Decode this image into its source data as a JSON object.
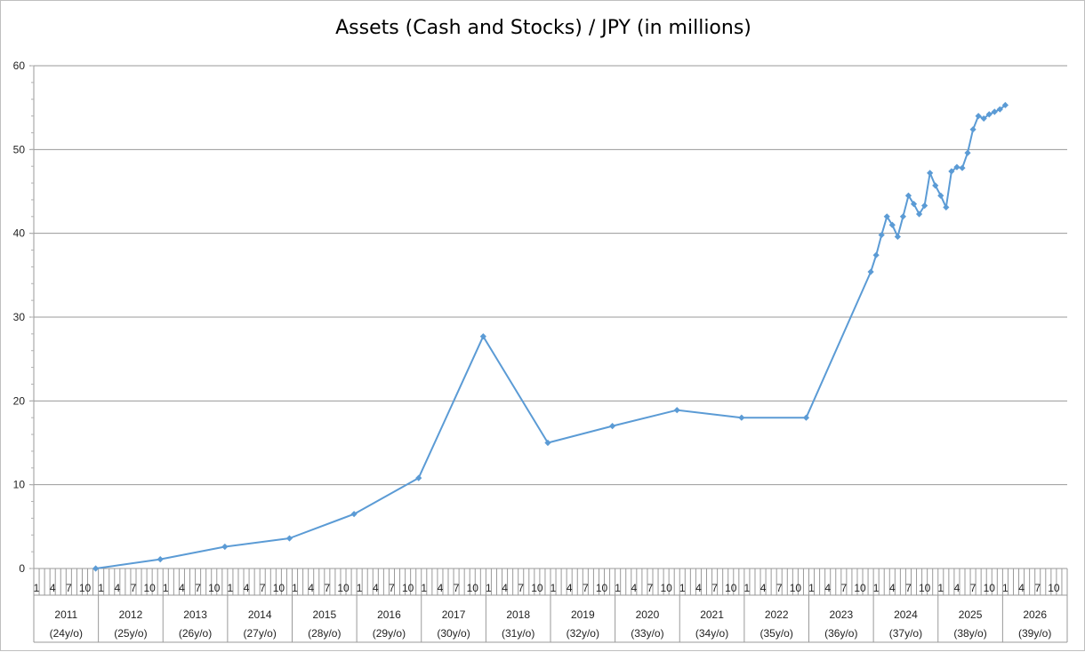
{
  "chart_data": {
    "type": "line",
    "title": "Assets (Cash and Stocks) / JPY (in millions)",
    "xlabel": "",
    "ylabel": "",
    "ylim": [
      0,
      60
    ],
    "yticks": [
      "0",
      "10",
      "20",
      "30",
      "40",
      "50",
      "60"
    ],
    "grid": true,
    "legend": "none",
    "color": "#5b9bd5",
    "x_range": [
      "2011-01",
      "2026-12"
    ],
    "month_ticks": [
      "1",
      "4",
      "7",
      "10"
    ],
    "years": [
      {
        "year": "2011",
        "age": "(24y/o)"
      },
      {
        "year": "2012",
        "age": "(25y/o)"
      },
      {
        "year": "2013",
        "age": "(26y/o)"
      },
      {
        "year": "2014",
        "age": "(27y/o)"
      },
      {
        "year": "2015",
        "age": "(28y/o)"
      },
      {
        "year": "2016",
        "age": "(29y/o)"
      },
      {
        "year": "2017",
        "age": "(30y/o)"
      },
      {
        "year": "2018",
        "age": "(31y/o)"
      },
      {
        "year": "2019",
        "age": "(32y/o)"
      },
      {
        "year": "2020",
        "age": "(33y/o)"
      },
      {
        "year": "2021",
        "age": "(34y/o)"
      },
      {
        "year": "2022",
        "age": "(35y/o)"
      },
      {
        "year": "2023",
        "age": "(36y/o)"
      },
      {
        "year": "2024",
        "age": "(37y/o)"
      },
      {
        "year": "2025",
        "age": "(38y/o)"
      },
      {
        "year": "2026",
        "age": "(39y/o)"
      }
    ],
    "series": [
      {
        "points": [
          {
            "x": "2011-12",
            "y": 0
          },
          {
            "x": "2012-12",
            "y": 1.1
          },
          {
            "x": "2013-12",
            "y": 2.6
          },
          {
            "x": "2014-12",
            "y": 3.6
          },
          {
            "x": "2015-12",
            "y": 6.5
          },
          {
            "x": "2016-12",
            "y": 10.8
          },
          {
            "x": "2017-12",
            "y": 27.7
          },
          {
            "x": "2018-12",
            "y": 15.0
          },
          {
            "x": "2019-12",
            "y": 17.0
          },
          {
            "x": "2020-12",
            "y": 18.9
          },
          {
            "x": "2021-12",
            "y": 18.0
          },
          {
            "x": "2022-12",
            "y": 18.0
          },
          {
            "x": "2023-12",
            "y": 35.4
          },
          {
            "x": "2024-01",
            "y": 37.4
          },
          {
            "x": "2024-02",
            "y": 39.8
          },
          {
            "x": "2024-03",
            "y": 42.0
          },
          {
            "x": "2024-04",
            "y": 41.0
          },
          {
            "x": "2024-05",
            "y": 39.6
          },
          {
            "x": "2024-06",
            "y": 42.0
          },
          {
            "x": "2024-07",
            "y": 44.5
          },
          {
            "x": "2024-08",
            "y": 43.5
          },
          {
            "x": "2024-09",
            "y": 42.3
          },
          {
            "x": "2024-10",
            "y": 43.3
          },
          {
            "x": "2024-11",
            "y": 47.2
          },
          {
            "x": "2024-12",
            "y": 45.7
          },
          {
            "x": "2025-01",
            "y": 44.5
          },
          {
            "x": "2025-02",
            "y": 43.1
          },
          {
            "x": "2025-03",
            "y": 47.4
          },
          {
            "x": "2025-04",
            "y": 47.9
          },
          {
            "x": "2025-05",
            "y": 47.8
          },
          {
            "x": "2025-06",
            "y": 49.6
          },
          {
            "x": "2025-07",
            "y": 52.4
          },
          {
            "x": "2025-08",
            "y": 54.0
          },
          {
            "x": "2025-09",
            "y": 53.7
          },
          {
            "x": "2025-10",
            "y": 54.2
          },
          {
            "x": "2025-11",
            "y": 54.5
          },
          {
            "x": "2025-12",
            "y": 54.8
          },
          {
            "x": "2026-01",
            "y": 55.3
          }
        ]
      }
    ]
  }
}
